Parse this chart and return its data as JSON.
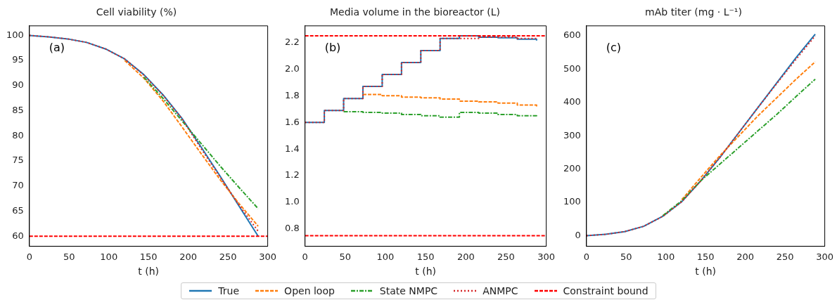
{
  "chart_data": [
    {
      "type": "line",
      "title": "Cell viability (%)",
      "xlabel": "t (h)",
      "annotations": [
        "(a)"
      ],
      "legend": "bottom",
      "xlim": [
        0,
        300
      ],
      "xticks": [
        0,
        50,
        100,
        150,
        200,
        250,
        300
      ],
      "ylim": [
        58,
        101.9
      ],
      "yticks": [
        60,
        65,
        70,
        75,
        80,
        85,
        90,
        95,
        100
      ],
      "series": [
        {
          "name": "True",
          "color": "#1f77b4",
          "line_style": "solid",
          "x": [
            0,
            24,
            48,
            72,
            96,
            120,
            144,
            168,
            192,
            216,
            240,
            264,
            288
          ],
          "values": [
            100,
            99.7,
            99.3,
            98.6,
            97.3,
            95.3,
            92.2,
            88.2,
            83.5,
            77.8,
            72,
            66,
            60
          ]
        },
        {
          "name": "Open loop",
          "color": "#ff7f0e",
          "line_style": "dashed",
          "x": [
            120,
            144,
            168,
            192,
            216,
            240,
            264,
            288
          ],
          "values": [
            95.0,
            91.5,
            87,
            81.8,
            76.5,
            71.3,
            66.5,
            62
          ]
        },
        {
          "name": "State NMPC",
          "color": "#2ca02c",
          "line_style": "dashdot",
          "x": [
            144,
            168,
            192,
            216,
            240,
            264,
            288
          ],
          "values": [
            91.7,
            87.5,
            83,
            78.5,
            74,
            69.7,
            65.5
          ]
        },
        {
          "name": "ANMPC",
          "color": "#d62728",
          "line_style": "dotted",
          "x": [
            0,
            24,
            48,
            72,
            96,
            120,
            144,
            168,
            192,
            216,
            240,
            264,
            288
          ],
          "values": [
            100,
            99.7,
            99.3,
            98.6,
            97.3,
            95.3,
            92.1,
            88.1,
            83.4,
            77.5,
            71.8,
            66.2,
            61
          ]
        }
      ],
      "ref_lines": [
        {
          "axis": "y",
          "value": 60,
          "label": "Constraint bound",
          "color": "#ff0000",
          "line_style": "dashed"
        }
      ]
    },
    {
      "type": "step",
      "title": "Media volume in the bioreactor (L)",
      "xlabel": "t (h)",
      "annotations": [
        "(b)"
      ],
      "xlim": [
        0,
        300
      ],
      "xticks": [
        0,
        50,
        100,
        150,
        200,
        250,
        300
      ],
      "ylim": [
        0.67,
        2.325
      ],
      "yticks": [
        0.8,
        {
          "value": 1,
          "label": "1.0"
        },
        1.2,
        1.4,
        1.6,
        1.8,
        {
          "value": 2,
          "label": "2.0"
        },
        2.2
      ],
      "series": [
        {
          "color": "#1f77b4",
          "line_style": "solid",
          "x": [
            0,
            24,
            48,
            72,
            96,
            120,
            144,
            168,
            192,
            216,
            240,
            264,
            288
          ],
          "values": [
            1.6,
            1.69,
            1.78,
            1.87,
            1.96,
            2.05,
            2.14,
            2.23,
            2.25,
            2.24,
            2.235,
            2.225,
            2.215
          ]
        },
        {
          "color": "#ff7f0e",
          "line_style": "dashed",
          "x": [
            72,
            96,
            120,
            144,
            168,
            192,
            216,
            240,
            264,
            288
          ],
          "values": [
            1.81,
            1.8,
            1.79,
            1.785,
            1.775,
            1.76,
            1.755,
            1.745,
            1.73,
            1.72
          ]
        },
        {
          "color": "#2ca02c",
          "line_style": "dashdot",
          "x": [
            48,
            72,
            96,
            120,
            144,
            168,
            192,
            216,
            240,
            264,
            288
          ],
          "values": [
            1.68,
            1.675,
            1.67,
            1.66,
            1.65,
            1.64,
            1.675,
            1.67,
            1.66,
            1.65,
            1.64
          ]
        },
        {
          "color": "#d62728",
          "line_style": "dotted",
          "x": [
            0,
            24,
            48,
            72,
            96,
            120,
            144,
            168,
            192,
            216,
            240,
            264,
            288
          ],
          "values": [
            1.6,
            1.69,
            1.78,
            1.87,
            1.96,
            2.05,
            2.14,
            2.23,
            2.23,
            2.24,
            2.24,
            2.23,
            2.22
          ]
        }
      ],
      "ref_lines": [
        {
          "axis": "y",
          "value": 2.25,
          "color": "#ff0000",
          "line_style": "dashed"
        },
        {
          "axis": "y",
          "value": 0.75,
          "color": "#ff0000",
          "line_style": "dashed"
        }
      ]
    },
    {
      "type": "line",
      "title": "mAb titer (mg · L⁻¹)",
      "xlabel": "t (h)",
      "annotations": [
        "(c)"
      ],
      "xlim": [
        0,
        300
      ],
      "xticks": [
        0,
        50,
        100,
        150,
        200,
        250,
        300
      ],
      "ylim": [
        -32,
        630
      ],
      "yticks": [
        0,
        100,
        200,
        300,
        400,
        500,
        600
      ],
      "series": [
        {
          "color": "#1f77b4",
          "line_style": "solid",
          "x": [
            0,
            24,
            48,
            72,
            96,
            120,
            144,
            168,
            192,
            216,
            240,
            264,
            288
          ],
          "values": [
            0,
            4,
            12,
            28,
            58,
            102,
            165,
            235,
            310,
            385,
            460,
            535,
            605
          ]
        },
        {
          "color": "#ff7f0e",
          "line_style": "dashed",
          "x": [
            120,
            144,
            168,
            192,
            216,
            240,
            264,
            288
          ],
          "values": [
            108,
            175,
            240,
            300,
            360,
            415,
            470,
            522
          ]
        },
        {
          "color": "#2ca02c",
          "line_style": "dashdot",
          "x": [
            96,
            120,
            144,
            168,
            192,
            216,
            240,
            264,
            288
          ],
          "values": [
            60,
            105,
            165,
            215,
            265,
            315,
            365,
            418,
            470
          ]
        },
        {
          "color": "#d62728",
          "line_style": "dotted",
          "x": [
            0,
            24,
            48,
            72,
            96,
            120,
            144,
            168,
            192,
            216,
            240,
            264,
            288
          ],
          "values": [
            0,
            4,
            12,
            28,
            58,
            102,
            165,
            235,
            310,
            385,
            458,
            530,
            600
          ]
        }
      ]
    }
  ]
}
